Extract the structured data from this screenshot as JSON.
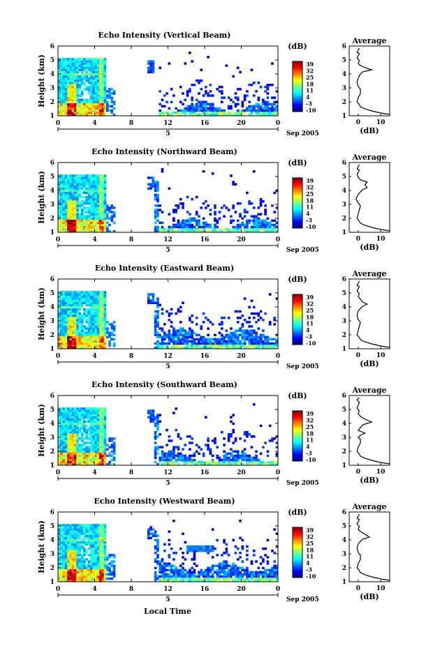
{
  "figure": {
    "x_axis_title": "Local Time",
    "date_label": "Sep 2005",
    "day_label": "5",
    "colorbar_unit": "(dB)",
    "colorbar_ticks": [
      "39",
      "32",
      "25",
      "18",
      "11",
      "4",
      "-3",
      "-10"
    ],
    "avg_title": "Average",
    "avg_xlabel": "(dB)",
    "ylabel": "Height (km)"
  },
  "chart_data": [
    {
      "type": "heatmap",
      "title": "Echo Intensity (Vertical Beam)",
      "xlabel": "Local Time",
      "ylabel": "Height (km)",
      "x_ticks": [
        "0",
        "4",
        "8",
        "12",
        "16",
        "20",
        "0"
      ],
      "y_ticks": [
        "1",
        "2",
        "3",
        "4",
        "5",
        "6"
      ],
      "xlim": [
        0,
        24
      ],
      "ylim": [
        1,
        6
      ],
      "colorbar": {
        "label": "(dB)",
        "range": [
          -10,
          39
        ],
        "ticks": [
          39,
          32,
          25,
          18,
          11,
          4,
          -3,
          -10
        ]
      },
      "colormap": "jet"
    },
    {
      "type": "line",
      "title": "Average",
      "xlabel": "(dB)",
      "ylabel": "",
      "x_ticks": [
        "0",
        "10"
      ],
      "y_ticks": [
        "1",
        "2",
        "3",
        "4",
        "5",
        "6"
      ],
      "ylim": [
        1,
        6
      ],
      "series": [
        {
          "x": [
            14,
            10,
            6,
            3,
            1,
            0.5,
            -0.5,
            0,
            1,
            1,
            0,
            -0.5,
            0,
            1,
            2,
            6,
            3,
            1,
            0,
            0.5,
            -0.5,
            0,
            0.5,
            -0.5,
            0,
            0.5
          ],
          "y": [
            1.1,
            1.2,
            1.35,
            1.5,
            1.65,
            1.8,
            2.0,
            2.3,
            2.6,
            2.9,
            3.1,
            3.4,
            3.7,
            4.0,
            4.15,
            4.3,
            4.45,
            4.6,
            4.75,
            4.95,
            5.15,
            5.3,
            5.45,
            5.55,
            5.7,
            5.85
          ]
        }
      ]
    },
    {
      "type": "heatmap",
      "title": "Echo Intensity (Northward Beam)",
      "xlabel": "Local Time",
      "ylabel": "Height (km)",
      "x_ticks": [
        "0",
        "4",
        "8",
        "12",
        "16",
        "20",
        "0"
      ],
      "y_ticks": [
        "1",
        "2",
        "3",
        "4",
        "5",
        "6"
      ],
      "xlim": [
        0,
        24
      ],
      "ylim": [
        1,
        6
      ],
      "colorbar": {
        "label": "(dB)",
        "range": [
          -10,
          39
        ],
        "ticks": [
          39,
          32,
          25,
          18,
          11,
          4,
          -3,
          -10
        ]
      },
      "colormap": "jet"
    },
    {
      "type": "line",
      "title": "Average",
      "xlabel": "(dB)",
      "ylabel": "",
      "x_ticks": [
        "0",
        "10"
      ],
      "y_ticks": [
        "1",
        "2",
        "3",
        "4",
        "5",
        "6"
      ],
      "ylim": [
        1,
        6
      ],
      "series": [
        {
          "x": [
            14,
            10,
            6,
            3,
            1,
            0.5,
            -0.5,
            0,
            0.5,
            1,
            0,
            -1,
            0,
            1,
            2,
            4,
            3,
            4,
            1,
            0,
            -0.5,
            0,
            0.5,
            -0.5,
            0,
            0.5
          ],
          "y": [
            1.1,
            1.2,
            1.35,
            1.5,
            1.65,
            1.8,
            2.0,
            2.3,
            2.6,
            2.9,
            3.1,
            3.4,
            3.7,
            3.9,
            4.05,
            4.2,
            4.4,
            4.6,
            4.75,
            4.95,
            5.15,
            5.3,
            5.45,
            5.55,
            5.7,
            5.85
          ]
        }
      ]
    },
    {
      "type": "heatmap",
      "title": "Echo Intensity (Eastward Beam)",
      "xlabel": "Local Time",
      "ylabel": "Height (km)",
      "x_ticks": [
        "0",
        "4",
        "8",
        "12",
        "16",
        "20",
        "0"
      ],
      "y_ticks": [
        "1",
        "2",
        "3",
        "4",
        "5",
        "6"
      ],
      "xlim": [
        0,
        24
      ],
      "ylim": [
        1,
        6
      ],
      "colorbar": {
        "label": "(dB)",
        "range": [
          -10,
          39
        ],
        "ticks": [
          39,
          32,
          25,
          18,
          11,
          4,
          -3,
          -10
        ]
      },
      "colormap": "jet"
    },
    {
      "type": "line",
      "title": "Average",
      "xlabel": "(dB)",
      "ylabel": "",
      "x_ticks": [
        "0",
        "10"
      ],
      "y_ticks": [
        "1",
        "2",
        "3",
        "4",
        "5",
        "6"
      ],
      "ylim": [
        1,
        6
      ],
      "series": [
        {
          "x": [
            14,
            10,
            6,
            3,
            1,
            0.5,
            -0.5,
            0,
            0.5,
            1,
            0,
            -0.5,
            0,
            1,
            2,
            4,
            2,
            1,
            0,
            0.5,
            -0.5,
            0,
            0.5,
            -0.5,
            0,
            0.5
          ],
          "y": [
            1.1,
            1.2,
            1.35,
            1.5,
            1.65,
            1.8,
            2.0,
            2.3,
            2.6,
            2.9,
            3.1,
            3.4,
            3.7,
            3.9,
            4.05,
            4.2,
            4.35,
            4.55,
            4.75,
            4.95,
            5.15,
            5.3,
            5.45,
            5.55,
            5.7,
            5.85
          ]
        }
      ]
    },
    {
      "type": "heatmap",
      "title": "Echo Intensity (Southward Beam)",
      "xlabel": "Local Time",
      "ylabel": "Height (km)",
      "x_ticks": [
        "0",
        "4",
        "8",
        "12",
        "16",
        "20",
        "0"
      ],
      "y_ticks": [
        "1",
        "2",
        "3",
        "4",
        "5",
        "6"
      ],
      "xlim": [
        0,
        24
      ],
      "ylim": [
        1,
        6
      ],
      "colorbar": {
        "label": "(dB)",
        "range": [
          -10,
          39
        ],
        "ticks": [
          39,
          32,
          25,
          18,
          11,
          4,
          -3,
          -10
        ]
      },
      "colormap": "jet"
    },
    {
      "type": "line",
      "title": "Average",
      "xlabel": "(dB)",
      "ylabel": "",
      "x_ticks": [
        "0",
        "10"
      ],
      "y_ticks": [
        "1",
        "2",
        "3",
        "4",
        "5",
        "6"
      ],
      "ylim": [
        1,
        6
      ],
      "series": [
        {
          "x": [
            14,
            10,
            6,
            3,
            1,
            0.5,
            -0.5,
            0,
            1,
            1,
            0,
            1,
            3,
            0,
            1,
            2,
            6,
            3,
            1,
            0,
            0.5,
            -0.5,
            0,
            0.5,
            -0.5,
            0.5
          ],
          "y": [
            1.1,
            1.2,
            1.35,
            1.5,
            1.65,
            1.8,
            2.0,
            2.3,
            2.6,
            2.85,
            3.0,
            3.15,
            3.3,
            3.5,
            3.7,
            3.9,
            4.1,
            4.3,
            4.5,
            4.7,
            4.9,
            5.1,
            5.3,
            5.5,
            5.7,
            5.85
          ]
        }
      ]
    },
    {
      "type": "heatmap",
      "title": "Echo Intensity (Westward Beam)",
      "xlabel": "Local Time",
      "ylabel": "Height (km)",
      "x_ticks": [
        "0",
        "4",
        "8",
        "12",
        "16",
        "20",
        "0"
      ],
      "y_ticks": [
        "1",
        "2",
        "3",
        "4",
        "5",
        "6"
      ],
      "xlim": [
        0,
        24
      ],
      "ylim": [
        1,
        6
      ],
      "colorbar": {
        "label": "(dB)",
        "range": [
          -10,
          39
        ],
        "ticks": [
          39,
          32,
          25,
          18,
          11,
          4,
          -3,
          -10
        ]
      },
      "colormap": "jet"
    },
    {
      "type": "line",
      "title": "Average",
      "xlabel": "(dB)",
      "ylabel": "",
      "x_ticks": [
        "0",
        "10"
      ],
      "y_ticks": [
        "1",
        "2",
        "3",
        "4",
        "5",
        "6"
      ],
      "ylim": [
        1,
        6
      ],
      "series": [
        {
          "x": [
            14,
            10,
            6,
            3,
            1,
            0.5,
            -0.5,
            0,
            1,
            1,
            0,
            -0.5,
            0,
            1,
            2,
            5,
            3,
            1,
            0,
            0.5,
            -0.5,
            0,
            0.5,
            -0.5,
            0,
            0.5
          ],
          "y": [
            1.1,
            1.2,
            1.35,
            1.5,
            1.65,
            1.8,
            2.0,
            2.3,
            2.6,
            2.9,
            3.1,
            3.4,
            3.7,
            3.9,
            4.05,
            4.2,
            4.4,
            4.6,
            4.75,
            4.95,
            5.15,
            5.3,
            5.45,
            5.55,
            5.7,
            5.85
          ]
        }
      ]
    }
  ]
}
